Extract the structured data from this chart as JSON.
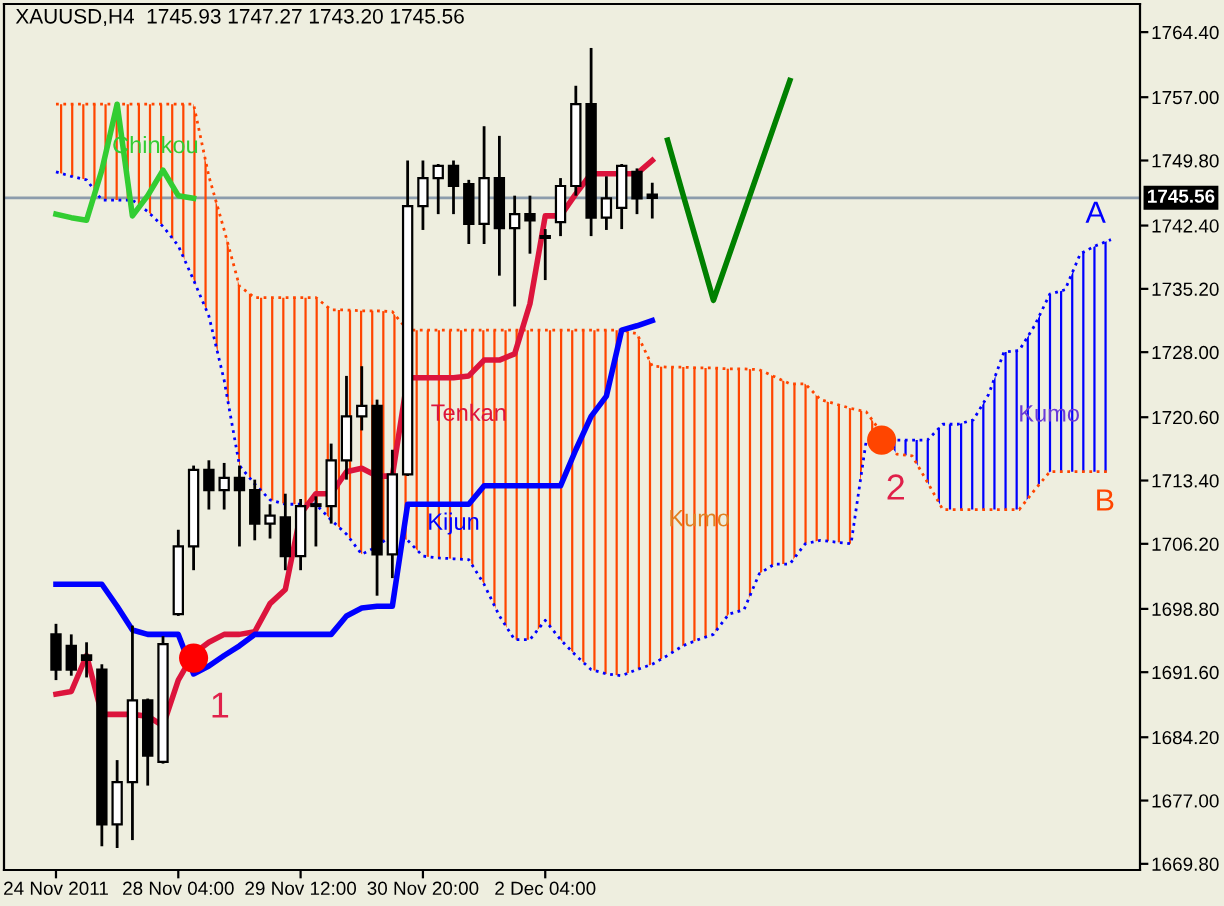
{
  "chart_data": {
    "type": "candlestick",
    "title": "XAUUSD,H4  1745.93 1747.27 1743.20 1745.56",
    "categories": [
      "24 Nov 2011",
      null,
      null,
      null,
      null,
      null,
      null,
      null,
      "28 Nov 04:00",
      null,
      null,
      null,
      null,
      null,
      null,
      null,
      "29 Nov 12:00",
      null,
      null,
      null,
      null,
      null,
      null,
      null,
      "30 Nov 20:00",
      null,
      null,
      null,
      null,
      null,
      null,
      null,
      "2 Dec 04:00",
      null,
      null,
      null,
      null,
      null,
      null,
      null,
      null,
      null,
      null,
      null,
      null,
      null,
      null,
      null,
      null,
      null,
      null,
      null,
      null,
      null,
      null,
      null,
      null,
      null,
      null,
      null,
      null,
      null,
      null,
      null,
      null,
      null,
      null,
      null,
      null,
      null
    ],
    "ohlc": [
      [
        1695.9,
        1697.1,
        1690.7,
        1691.9
      ],
      [
        1694.6,
        1695.9,
        1691.2,
        1691.9
      ],
      [
        1693.5,
        1695.0,
        1691.0,
        1693.0
      ],
      [
        1691.9,
        1692.5,
        1671.8,
        1674.3
      ],
      [
        1674.3,
        1681.6,
        1671.6,
        1679.1
      ],
      [
        1679.1,
        1696.9,
        1672.5,
        1688.4
      ],
      [
        1688.4,
        1688.6,
        1678.7,
        1682.1
      ],
      [
        1681.4,
        1695.7,
        1681.2,
        1694.8
      ],
      [
        1698.2,
        1707.8,
        1698.0,
        1705.9
      ],
      [
        1705.9,
        1715.1,
        1703.2,
        1714.6
      ],
      [
        1714.6,
        1715.7,
        1710.1,
        1712.3
      ],
      [
        1712.3,
        1715.4,
        1710.1,
        1713.7
      ],
      [
        1713.7,
        1715.1,
        1705.9,
        1712.3
      ],
      [
        1712.3,
        1713.5,
        1706.6,
        1708.5
      ],
      [
        1708.5,
        1710.7,
        1706.8,
        1709.4
      ],
      [
        1709.2,
        1711.9,
        1703.2,
        1704.8
      ],
      [
        1704.8,
        1711.3,
        1703.2,
        1710.5
      ],
      [
        1710.5,
        1711.6,
        1705.9,
        1710.7
      ],
      [
        1710.5,
        1717.6,
        1708.5,
        1715.7
      ],
      [
        1715.7,
        1725.3,
        1713.5,
        1720.7
      ],
      [
        1720.7,
        1726.4,
        1719.1,
        1721.9
      ],
      [
        1721.9,
        1722.6,
        1700.3,
        1705.0
      ],
      [
        1705.0,
        1716.9,
        1702.3,
        1714.1
      ],
      [
        1714.1,
        1749.8,
        1713.9,
        1744.6
      ],
      [
        1744.6,
        1749.8,
        1741.9,
        1747.8
      ],
      [
        1747.8,
        1749.4,
        1743.7,
        1749.2
      ],
      [
        1749.2,
        1749.8,
        1743.7,
        1746.9
      ],
      [
        1747.1,
        1747.6,
        1740.3,
        1742.6
      ],
      [
        1742.6,
        1753.7,
        1740.3,
        1747.8
      ],
      [
        1747.8,
        1752.6,
        1736.7,
        1742.1
      ],
      [
        1742.1,
        1745.8,
        1733.2,
        1743.7
      ],
      [
        1743.7,
        1745.8,
        1739.2,
        1743.0
      ],
      [
        1741.2,
        1742.0,
        1736.2,
        1741.0
      ],
      [
        1742.8,
        1747.8,
        1741.2,
        1746.9
      ],
      [
        1746.9,
        1758.3,
        1745.8,
        1756.2
      ],
      [
        1756.2,
        1762.6,
        1741.2,
        1743.3
      ],
      [
        1743.3,
        1748.0,
        1741.9,
        1745.5
      ],
      [
        1744.4,
        1749.4,
        1742.0,
        1749.2
      ],
      [
        1748.5,
        1748.9,
        1743.7,
        1745.5
      ],
      [
        1745.93,
        1747.27,
        1743.2,
        1745.56
      ],
      null,
      null,
      null,
      null,
      null,
      null,
      null,
      null,
      null,
      null,
      null,
      null,
      null,
      null,
      null,
      null,
      null,
      null,
      null,
      null,
      null,
      null,
      null,
      null,
      null,
      null,
      null,
      null,
      null,
      null
    ],
    "series": [
      {
        "type": "line",
        "name": "A",
        "color": "#0000ff",
        "line_style": "dotted",
        "values": [
          1748.5,
          1748.0,
          1747.6,
          1745.3,
          1745.3,
          1745.3,
          1744.0,
          1742.3,
          1740.1,
          1736.2,
          1732.1,
          1724.8,
          1715.1,
          1713.0,
          1711.2,
          1710.7,
          1710.7,
          1710.7,
          1708.9,
          1707.3,
          1705.0,
          1705.9,
          1707.3,
          1706.6,
          1704.8,
          1704.6,
          1704.5,
          1704.4,
          1701.6,
          1698.0,
          1695.3,
          1695.3,
          1697.5,
          1695.3,
          1693.5,
          1691.9,
          1691.4,
          1691.2,
          1691.9,
          1692.5,
          1693.5,
          1694.6,
          1695.3,
          1695.9,
          1698.2,
          1698.7,
          1702.8,
          1703.9,
          1703.9,
          1706.2,
          1706.6,
          1706.4,
          1706.2,
          1718.0,
          1718.0,
          1718.0,
          1718.0,
          1718.0,
          1719.8,
          1719.8,
          1720.3,
          1723.2,
          1728.0,
          1728.2,
          1731.0,
          1734.6,
          1735.1,
          1739.2,
          1740.1,
          1740.8
        ]
      },
      {
        "type": "line",
        "name": "B",
        "color": "#ff4500",
        "line_style": "dotted",
        "values": [
          1756.2,
          1756.2,
          1756.2,
          1756.2,
          1756.2,
          1756.2,
          1756.2,
          1756.2,
          1756.2,
          1756.2,
          1748.0,
          1741.9,
          1735.5,
          1734.2,
          1734.2,
          1734.2,
          1734.2,
          1734.2,
          1732.8,
          1732.8,
          1732.7,
          1732.7,
          1732.6,
          1730.5,
          1730.5,
          1730.5,
          1730.5,
          1730.5,
          1730.5,
          1730.5,
          1730.5,
          1730.5,
          1730.5,
          1730.5,
          1730.5,
          1730.5,
          1730.5,
          1730.5,
          1730.1,
          1726.4,
          1726.3,
          1726.3,
          1726.2,
          1726.2,
          1726.1,
          1726.1,
          1726.0,
          1725.2,
          1724.4,
          1724.4,
          1722.6,
          1722.1,
          1721.6,
          1721.2,
          1718.8,
          1716.4,
          1716.2,
          1713.2,
          1710.1,
          1710.1,
          1710.1,
          1710.1,
          1710.1,
          1710.1,
          1712.3,
          1714.4,
          1714.4,
          1714.4,
          1714.4,
          1714.4
        ]
      },
      {
        "type": "line",
        "name": "Tenkan",
        "color": "#dc143c",
        "line_style": "solid",
        "values": [
          1689.1,
          1689.4,
          1693.5,
          1686.8,
          1686.8,
          1686.8,
          1686.6,
          1685.5,
          1690.7,
          1693.7,
          1695.0,
          1695.9,
          1695.9,
          1696.2,
          1699.4,
          1701.0,
          1709.6,
          1711.9,
          1711.9,
          1714.4,
          1714.8,
          1713.9,
          1713.9,
          1725.1,
          1725.1,
          1725.1,
          1725.1,
          1725.3,
          1727.1,
          1727.1,
          1727.8,
          1733.5,
          1743.5,
          1743.5,
          1746.0,
          1748.3,
          1748.3,
          1748.3,
          1748.3,
          1749.8,
          null,
          null,
          null,
          null,
          null,
          null,
          null,
          null,
          null,
          null,
          null,
          null,
          null,
          null,
          null,
          null,
          null,
          null,
          null,
          null,
          null,
          null,
          null,
          null,
          null,
          null,
          null,
          null,
          null,
          null
        ]
      },
      {
        "type": "line",
        "name": "Kijun",
        "color": "#0000ff",
        "line_style": "solid",
        "values": [
          1701.6,
          1701.6,
          1701.6,
          1701.6,
          1699.1,
          1696.4,
          1695.9,
          1695.9,
          1695.9,
          1691.4,
          1692.3,
          1693.5,
          1694.6,
          1695.9,
          1695.9,
          1695.9,
          1695.9,
          1695.9,
          1695.9,
          1698.0,
          1698.9,
          1699.1,
          1699.1,
          1710.7,
          1710.7,
          1710.7,
          1710.7,
          1710.7,
          1712.8,
          1712.8,
          1712.8,
          1712.8,
          1712.8,
          1712.8,
          1716.9,
          1720.7,
          1723.0,
          1730.5,
          1731.0,
          1731.6,
          null,
          null,
          null,
          null,
          null,
          null,
          null,
          null,
          null,
          null,
          null,
          null,
          null,
          null,
          null,
          null,
          null,
          null,
          null,
          null,
          null,
          null,
          null,
          null,
          null,
          null,
          null,
          null,
          null,
          null
        ]
      },
      {
        "type": "line",
        "name": "Chinkou",
        "color": "#32cd32",
        "line_style": "solid",
        "values": [
          1743.7,
          1743.3,
          1743.0,
          1748.7,
          1756.2,
          1743.5,
          1745.8,
          1748.7,
          1745.8,
          1745.5,
          null,
          null,
          null,
          null,
          null,
          null,
          null,
          null,
          null,
          null,
          null,
          null,
          null,
          null,
          null,
          null,
          null,
          null,
          null,
          null,
          null,
          null,
          null,
          null,
          null,
          null,
          null,
          null,
          null,
          null,
          null,
          null,
          null,
          null,
          null,
          null,
          null,
          null,
          null,
          null,
          null,
          null,
          null,
          null,
          null,
          null,
          null,
          null,
          null,
          null,
          null,
          null,
          null,
          null,
          null,
          null,
          null,
          null,
          null,
          null
        ]
      },
      {
        "type": "line",
        "color": "#008000",
        "line_style": "solid",
        "values": [
          null,
          null,
          null,
          null,
          null,
          null,
          null,
          null,
          null,
          null,
          null,
          null,
          null,
          null,
          null,
          null,
          null,
          null,
          null,
          null,
          null,
          null,
          null,
          null,
          null,
          null,
          null,
          null,
          null,
          null,
          null,
          null,
          null,
          null,
          null,
          null,
          null,
          null,
          null,
          null,
          1752.1,
          1746.0,
          1740.0,
          1733.9,
          1738.9,
          1743.9,
          1748.9,
          1753.9,
          1758.9,
          null,
          null,
          null,
          null,
          null,
          null,
          null,
          null,
          null,
          null,
          null,
          null,
          null,
          null,
          null,
          null,
          null,
          null,
          null,
          null,
          null
        ]
      },
      {
        "type": "scatter",
        "marker": "circle",
        "color": "#ff0000",
        "values": [
          null,
          null,
          null,
          null,
          null,
          null,
          null,
          null,
          null,
          1693.2,
          null,
          null,
          null,
          null,
          null,
          null,
          null,
          null,
          null,
          null,
          null,
          null,
          null,
          null,
          null,
          null,
          null,
          null,
          null,
          null,
          null,
          null,
          null,
          null,
          null,
          null,
          null,
          null,
          null,
          null,
          null,
          null,
          null,
          null,
          null,
          null,
          null,
          null,
          null,
          null,
          null,
          null,
          null,
          null,
          null,
          null,
          null,
          null,
          null,
          null,
          null,
          null,
          null,
          null,
          null,
          null,
          null,
          null,
          null,
          null
        ]
      },
      {
        "type": "scatter",
        "marker": "circle",
        "color": "#ff4500",
        "values": [
          null,
          null,
          null,
          null,
          null,
          null,
          null,
          null,
          null,
          null,
          null,
          null,
          null,
          null,
          null,
          null,
          null,
          null,
          null,
          null,
          null,
          null,
          null,
          null,
          null,
          null,
          null,
          null,
          null,
          null,
          null,
          null,
          null,
          null,
          null,
          null,
          null,
          null,
          null,
          null,
          null,
          null,
          null,
          null,
          null,
          null,
          null,
          null,
          null,
          null,
          null,
          null,
          null,
          null,
          1718.0,
          null,
          null,
          null,
          null,
          null,
          null,
          null,
          null,
          null,
          null,
          null,
          null,
          null,
          null,
          null
        ]
      }
    ],
    "annotations": [
      {
        "text": "1",
        "y": 1693.2
      },
      {
        "text": "2",
        "y": 1718.0
      },
      "Kumo",
      "Kumo"
    ],
    "ref_lines": [
      {
        "axis": "y",
        "value": 1745.56,
        "label": "1745.56",
        "color": "#8c9cac"
      }
    ],
    "ylim": [
      1669.1,
      1767.6
    ],
    "yticks": [
      {
        "value": 1669.8,
        "label": "1669.80"
      },
      {
        "value": 1677.0,
        "label": "1677.00"
      },
      {
        "value": 1684.2,
        "label": "1684.20"
      },
      {
        "value": 1691.6,
        "label": "1691.60"
      },
      {
        "value": 1698.8,
        "label": "1698.80"
      },
      {
        "value": 1706.2,
        "label": "1706.20"
      },
      {
        "value": 1713.4,
        "label": "1713.40"
      },
      {
        "value": 1720.6,
        "label": "1720.60"
      },
      {
        "value": 1728.0,
        "label": "1728.00"
      },
      {
        "value": 1735.2,
        "label": "1735.20"
      },
      {
        "value": 1742.4,
        "label": "1742.40"
      },
      {
        "value": 1749.8,
        "label": "1749.80"
      },
      {
        "value": 1757.0,
        "label": "1757.00"
      },
      {
        "value": 1764.4,
        "label": "1764.40"
      }
    ],
    "grid": false,
    "legend": false
  }
}
